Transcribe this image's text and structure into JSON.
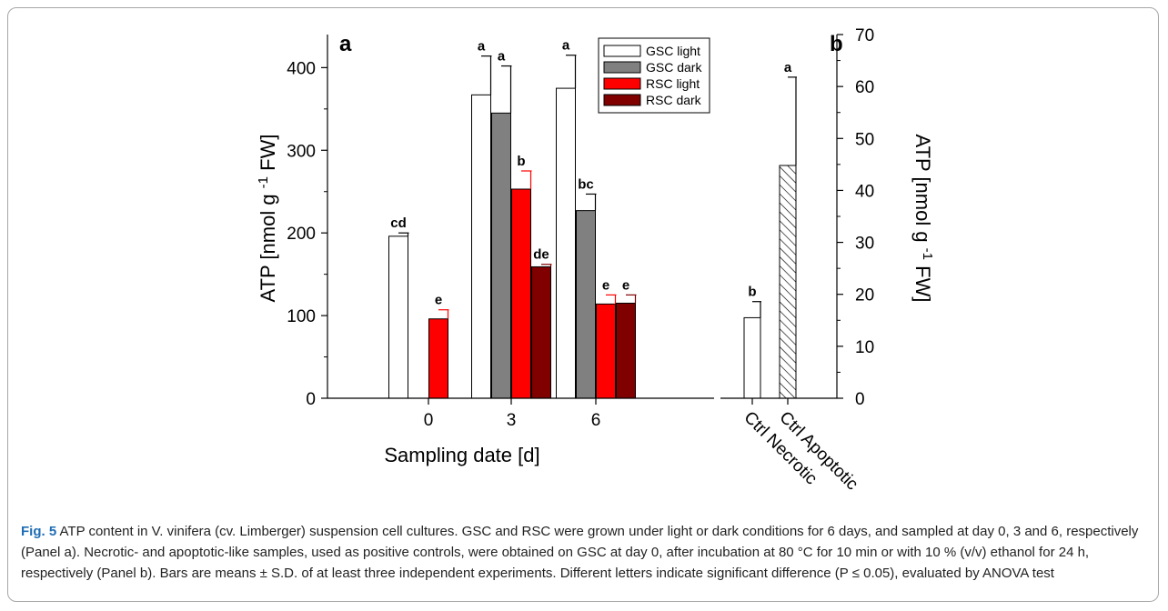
{
  "chart_data": [
    {
      "panel_label": "a",
      "type": "bar",
      "categories": [
        "0",
        "3",
        "6"
      ],
      "xlabel": "Sampling date [d]",
      "ylabel": "ATP [nmol g-1 FW]",
      "ylim": [
        0,
        440
      ],
      "yticks": [
        0,
        100,
        200,
        300,
        400
      ],
      "grid": false,
      "legend_position": "top-right",
      "series": [
        {
          "name": "GSC light",
          "color": "#ffffff",
          "values": [
            196,
            367,
            375
          ],
          "errors": [
            4,
            47,
            40
          ],
          "letters": [
            "cd",
            "a",
            "a"
          ]
        },
        {
          "name": "GSC dark",
          "color": "#808080",
          "values": [
            null,
            345,
            227
          ],
          "errors": [
            null,
            57,
            20
          ],
          "letters": [
            "",
            "a",
            "bc"
          ]
        },
        {
          "name": "RSC light",
          "color": "#ff0000",
          "values": [
            96,
            253,
            114
          ],
          "errors": [
            11,
            22,
            11
          ],
          "letters": [
            "e",
            "b",
            "e"
          ]
        },
        {
          "name": "RSC dark",
          "color": "#800000",
          "values": [
            null,
            159,
            115
          ],
          "errors": [
            null,
            3,
            10
          ],
          "letters": [
            "",
            "de",
            "e"
          ]
        }
      ]
    },
    {
      "panel_label": "b",
      "type": "bar",
      "categories": [
        "Ctrl Necrotic",
        "Ctrl Apoptotic"
      ],
      "ylabel": "ATP [nmol g-1 FW]",
      "ylim": [
        0,
        70
      ],
      "yticks": [
        0,
        10,
        20,
        30,
        40,
        50,
        60,
        70
      ],
      "y_axis_side": "right",
      "grid": false,
      "values": [
        15.5,
        44.8
      ],
      "errors": [
        3.1,
        17
      ],
      "letters": [
        "b",
        "a"
      ],
      "fills": [
        "open",
        "hatched"
      ]
    }
  ],
  "caption": {
    "fig_label": "Fig. 5",
    "text": " ATP content in V. vinifera (cv. Limberger) suspension cell cultures. GSC and RSC were grown under light or dark conditions for 6 days, and sampled at day 0, 3 and 6, respectively (Panel a). Necrotic- and apoptotic-like samples, used as positive controls, were obtained on GSC at day 0, after incubation at 80 °C for 10 min or with 10 % (v/v) ethanol for 24 h, respectively (Panel b). Bars are means ± S.D. of at least three independent experiments. Different letters indicate significant difference (P ≤ 0.05), evaluated by ANOVA test"
  },
  "colors": {
    "frame": "#a6a6a6",
    "caption_accent": "#1f6db5"
  }
}
